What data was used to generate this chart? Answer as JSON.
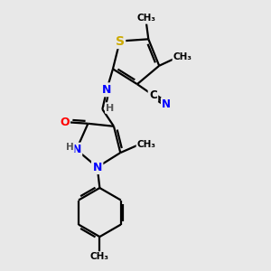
{
  "background_color": "#e8e8e8",
  "atom_colors": {
    "S": "#ccaa00",
    "N": "#0000ff",
    "O": "#ff0000",
    "C": "#000000",
    "H": "#555555"
  },
  "bond_color": "#000000",
  "bond_width": 1.6,
  "figsize": [
    3.0,
    3.0
  ],
  "dpi": 100,
  "xlim": [
    0,
    10
  ],
  "ylim": [
    0,
    11
  ]
}
